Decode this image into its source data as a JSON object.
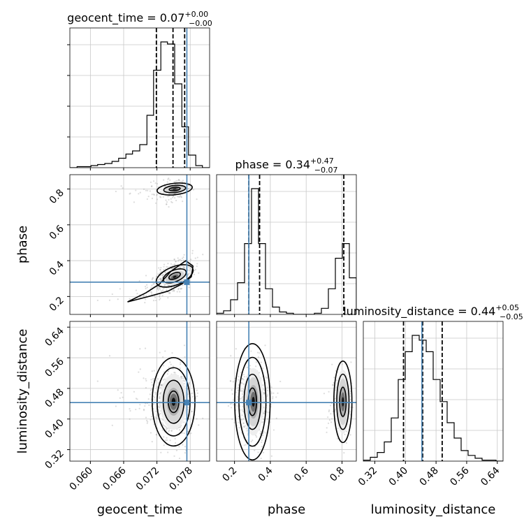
{
  "chart_data": {
    "type": "corner",
    "parameters": [
      "geocent_time",
      "phase",
      "luminosity_distance"
    ],
    "ranges": {
      "geocent_time": [
        0.0563,
        0.0815
      ],
      "phase": [
        0.1,
        0.88
      ],
      "luminosity_distance": [
        0.29,
        0.655
      ]
    },
    "injection": {
      "geocent_time": 0.0774,
      "phase": 0.28,
      "luminosity_distance": 0.443
    },
    "titles": [
      {
        "param": "geocent_time",
        "prefix": "geocent_time = ",
        "value": "0.07",
        "plus": "+0.00",
        "minus": "−0.00"
      },
      {
        "param": "phase",
        "prefix": "phase = ",
        "value": "0.34",
        "plus": "+0.47",
        "minus": "−0.07"
      },
      {
        "param": "luminosity_distance",
        "prefix": "luminosity_distance = ",
        "value": "0.44",
        "plus": "+0.05",
        "minus": "−0.05"
      }
    ],
    "quantiles": {
      "geocent_time": [
        0.0719,
        0.0749,
        0.077
      ],
      "phase": [
        0.28,
        0.34,
        0.81
      ],
      "luminosity_distance": [
        0.395,
        0.445,
        0.496
      ]
    },
    "histograms": {
      "geocent_time": {
        "edges": [
          0.0563,
          0.0576,
          0.0588,
          0.0601,
          0.0613,
          0.0626,
          0.0639,
          0.0651,
          0.0664,
          0.0676,
          0.0689,
          0.0702,
          0.0714,
          0.0727,
          0.0739,
          0.0752,
          0.0765,
          0.0777,
          0.079,
          0.0802,
          0.0815
        ],
        "counts": [
          0,
          1,
          1,
          2,
          3,
          4,
          6,
          9,
          13,
          16,
          22,
          50,
          93,
          120,
          118,
          80,
          39,
          12,
          2,
          0
        ]
      },
      "phase": {
        "edges": [
          0.1,
          0.139,
          0.178,
          0.217,
          0.256,
          0.295,
          0.334,
          0.373,
          0.412,
          0.451,
          0.49,
          0.529,
          0.568,
          0.607,
          0.646,
          0.685,
          0.724,
          0.763,
          0.802,
          0.841,
          0.88
        ],
        "counts": [
          1,
          3,
          12,
          26,
          58,
          103,
          58,
          21,
          6,
          2,
          1,
          0,
          0,
          0,
          1,
          5,
          21,
          46,
          58,
          30
        ]
      },
      "luminosity_distance": {
        "edges": [
          0.29,
          0.30825,
          0.3265,
          0.34475,
          0.363,
          0.38125,
          0.3995,
          0.41775,
          0.436,
          0.45425,
          0.4725,
          0.49075,
          0.509,
          0.52725,
          0.5455,
          0.56375,
          0.582,
          0.60025,
          0.6185,
          0.63675,
          0.655
        ],
        "counts": [
          1,
          4,
          9,
          20,
          45,
          85,
          114,
          131,
          126,
          114,
          85,
          62,
          40,
          24,
          11,
          6,
          3,
          1,
          1,
          0
        ]
      }
    },
    "ticks": {
      "geocent_time": [
        "0.060",
        "0.066",
        "0.072",
        "0.078"
      ],
      "phase": [
        "0.2",
        "0.4",
        "0.6",
        "0.8"
      ],
      "luminosity_distance": [
        "0.32",
        "0.40",
        "0.48",
        "0.56",
        "0.64"
      ]
    },
    "axis_labels": {
      "geocent_time": "geocent_time",
      "phase": "phase",
      "luminosity_distance": "luminosity_distance"
    },
    "grid": true,
    "colors": {
      "truth": "#4682b4",
      "line": "#000000",
      "scatter": "#9a9a9a"
    }
  }
}
